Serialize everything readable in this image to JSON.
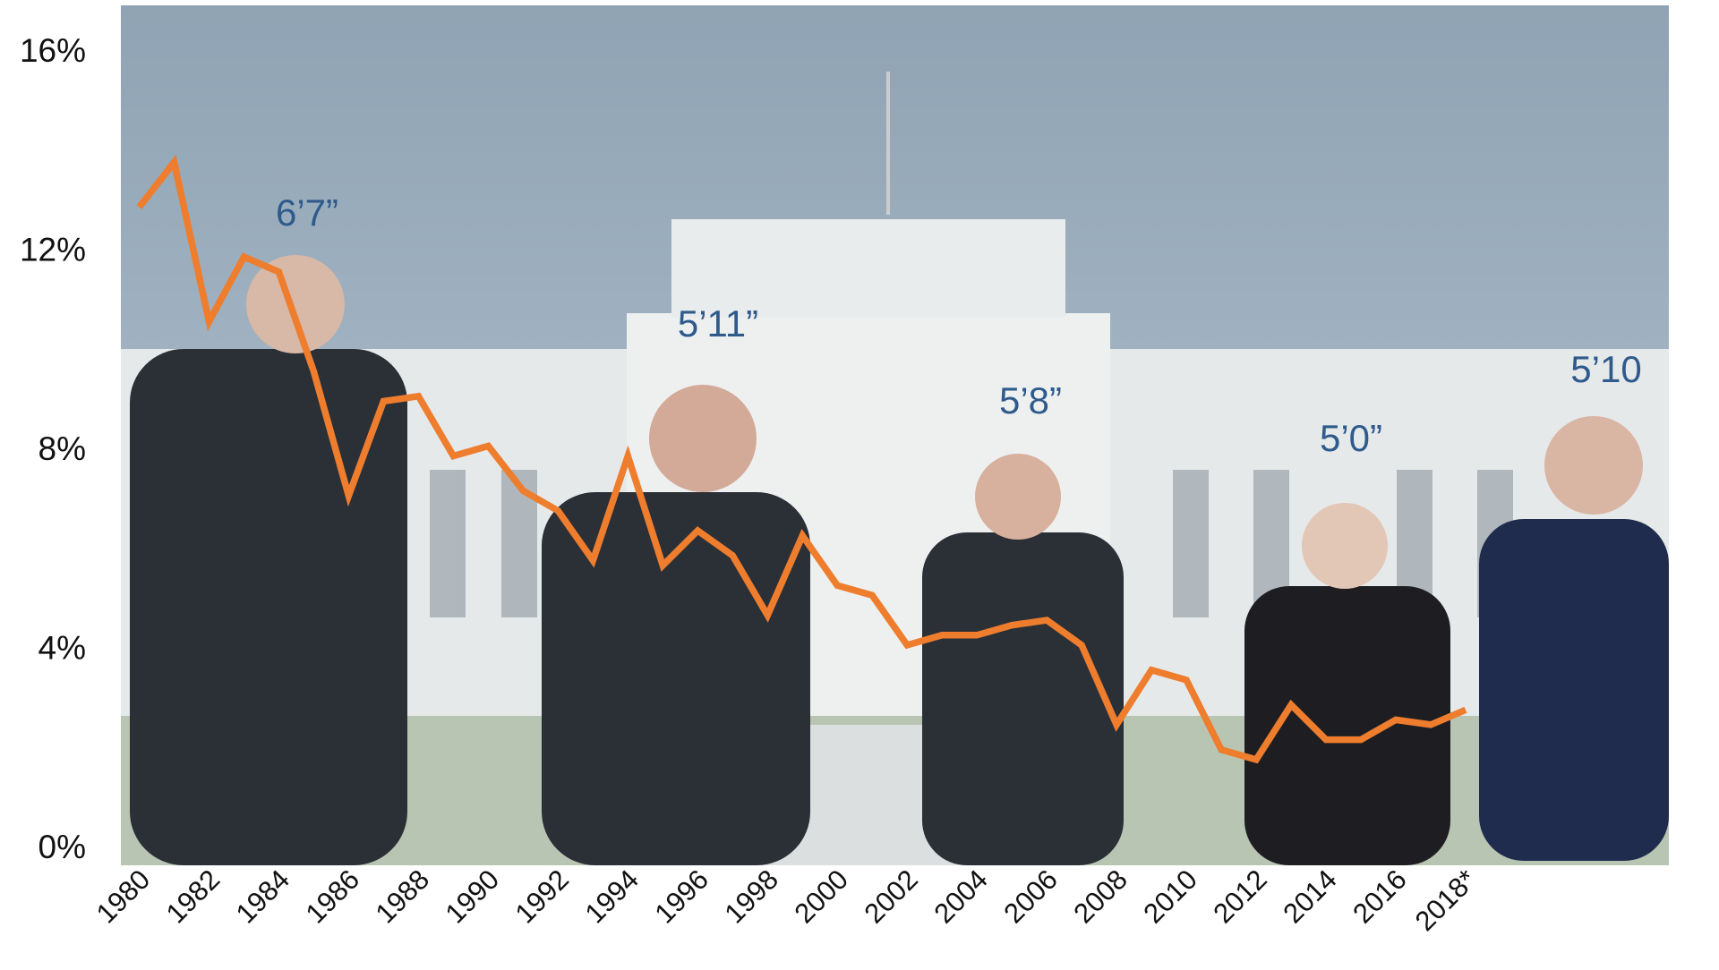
{
  "chart_data": {
    "type": "line",
    "categories": [
      "1980",
      null,
      "1982",
      null,
      "1984",
      null,
      "1986",
      null,
      "1988",
      null,
      "1990",
      null,
      "1992",
      null,
      "1994",
      null,
      "1996",
      null,
      "1998",
      null,
      "2000",
      null,
      "2002",
      null,
      "2004",
      null,
      "2006",
      null,
      "2008",
      null,
      "2010",
      null,
      "2012",
      null,
      "2014",
      null,
      "2016",
      null,
      "2018*"
    ],
    "series": [
      {
        "color": "#ee7d2e",
        "values": [
          12.9,
          13.8,
          10.6,
          11.9,
          11.6,
          9.6,
          7.1,
          9.0,
          9.1,
          7.9,
          8.1,
          7.2,
          6.8,
          5.8,
          7.9,
          5.7,
          6.4,
          5.9,
          4.7,
          6.3,
          5.3,
          5.1,
          4.1,
          4.3,
          4.3,
          4.5,
          4.6,
          4.1,
          2.5,
          3.6,
          3.4,
          2.0,
          1.8,
          2.9,
          2.2,
          2.2,
          2.6,
          2.5,
          2.8
        ]
      }
    ],
    "ylim": [
      0,
      16
    ],
    "yticks": [
      {
        "value": 0,
        "label": "0%"
      },
      {
        "value": 4,
        "label": "4%"
      },
      {
        "value": 8,
        "label": "8%"
      },
      {
        "value": 12,
        "label": "12%"
      },
      {
        "value": 16,
        "label": "16%"
      }
    ],
    "annotations": [
      "6’7”",
      "5’11”",
      "5’8”",
      "5’0”",
      "5’10"
    ]
  }
}
